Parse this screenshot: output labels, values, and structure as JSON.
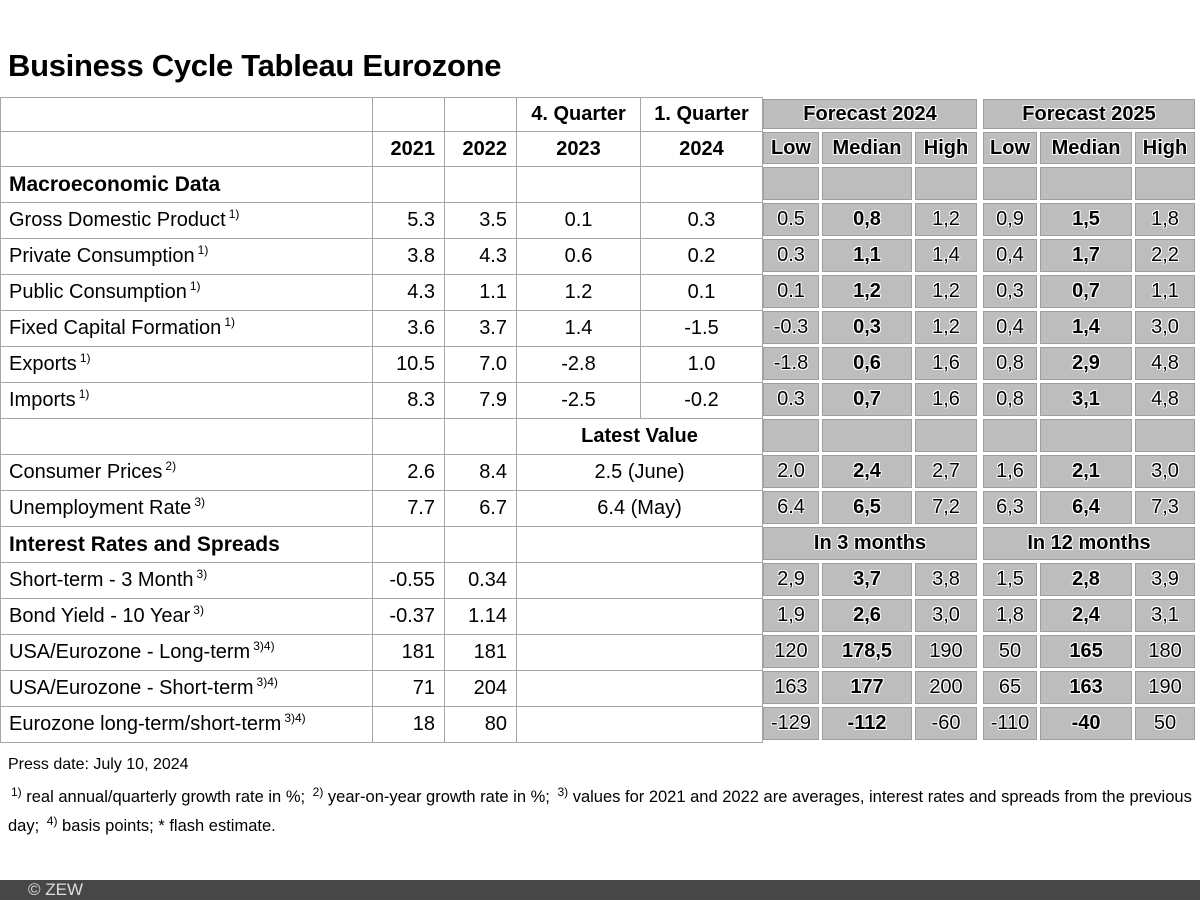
{
  "title": "Business Cycle Tableau Eurozone",
  "press_date": "Press date: July 10, 2024",
  "footer": {
    "copyright": "© ZEW"
  },
  "colors": {
    "cell_gray": "#bdbdbd",
    "grid_line": "#a6a6a6",
    "footer_bg": "#474747",
    "footer_text": "#dedede"
  },
  "footnotes": [
    {
      "sup": "1)",
      "text": " real annual/quarterly growth rate in %; "
    },
    {
      "sup": "2)",
      "text": " year-on-year growth rate in %; "
    },
    {
      "sup": "3)",
      "text": " values for 2021 and 2022 are averages, interest rates and spreads from the previous day; "
    },
    {
      "sup": "4)",
      "text": " basis points; * flash estimate."
    }
  ],
  "chart_data": {
    "type": "table",
    "title": "Business Cycle Tableau Eurozone",
    "header": {
      "year_cols": [
        "2021",
        "2022"
      ],
      "quarter_cols": [
        {
          "top": "4. Quarter",
          "year": "2023"
        },
        {
          "top": "1. Quarter",
          "year": "2024"
        }
      ],
      "forecast_groups": [
        {
          "label": "Forecast 2024",
          "sub": [
            "Low",
            "Median",
            "High"
          ]
        },
        {
          "label": "Forecast 2025",
          "sub": [
            "Low",
            "Median",
            "High"
          ]
        }
      ],
      "latest_value_label": "Latest Value"
    },
    "rows": [
      {
        "kind": "section",
        "label": "Macroeconomic Data"
      },
      {
        "kind": "data",
        "label": "Gross Domestic Product",
        "sup": "1)",
        "y": [
          "5.3",
          "3.5"
        ],
        "q": [
          "0.1",
          "0.3"
        ],
        "f1": [
          "0.5",
          "0,8",
          "1,2"
        ],
        "f2": [
          "0,9",
          "1,5",
          "1,8"
        ]
      },
      {
        "kind": "data",
        "label": "Private Consumption",
        "sup": "1)",
        "y": [
          "3.8",
          "4.3"
        ],
        "q": [
          "0.6",
          "0.2"
        ],
        "f1": [
          "0.3",
          "1,1",
          "1,4"
        ],
        "f2": [
          "0,4",
          "1,7",
          "2,2"
        ]
      },
      {
        "kind": "data",
        "label": "Public Consumption",
        "sup": "1)",
        "y": [
          "4.3",
          "1.1"
        ],
        "q": [
          "1.2",
          "0.1"
        ],
        "f1": [
          "0.1",
          "1,2",
          "1,2"
        ],
        "f2": [
          "0,3",
          "0,7",
          "1,1"
        ]
      },
      {
        "kind": "data",
        "label": "Fixed Capital Formation",
        "sup": "1)",
        "y": [
          "3.6",
          "3.7"
        ],
        "q": [
          "1.4",
          "-1.5"
        ],
        "f1": [
          "-0.3",
          "0,3",
          "1,2"
        ],
        "f2": [
          "0,4",
          "1,4",
          "3,0"
        ]
      },
      {
        "kind": "data",
        "label": "Exports",
        "sup": "1)",
        "y": [
          "10.5",
          "7.0"
        ],
        "q": [
          "-2.8",
          "1.0"
        ],
        "f1": [
          "-1.8",
          "0,6",
          "1,6"
        ],
        "f2": [
          "0,8",
          "2,9",
          "4,8"
        ]
      },
      {
        "kind": "data",
        "label": "Imports",
        "sup": "1)",
        "y": [
          "8.3",
          "7.9"
        ],
        "q": [
          "-2.5",
          "-0.2"
        ],
        "f1": [
          "0.3",
          "0,7",
          "1,6"
        ],
        "f2": [
          "0,8",
          "3,1",
          "4,8"
        ]
      },
      {
        "kind": "latest-header",
        "label": "Latest Value"
      },
      {
        "kind": "latest",
        "label": "Consumer Prices",
        "sup": "2)",
        "y": [
          "2.6",
          "8.4"
        ],
        "latest": "2.5 (June)",
        "f1": [
          "2.0",
          "2,4",
          "2,7"
        ],
        "f2": [
          "1,6",
          "2,1",
          "3,0"
        ]
      },
      {
        "kind": "latest",
        "label": "Unemployment Rate",
        "sup": "3)",
        "y": [
          "7.7",
          "6.7"
        ],
        "latest": "6.4 (May)",
        "f1": [
          "6.4",
          "6,5",
          "7,2"
        ],
        "f2": [
          "6,3",
          "6,4",
          "7,3"
        ]
      },
      {
        "kind": "section-spans",
        "label": "Interest Rates and Spreads",
        "spans": [
          "In 3 months",
          "In 12 months"
        ]
      },
      {
        "kind": "rate",
        "label": "Short-term - 3 Month",
        "sup": "3)",
        "y": [
          "-0.55",
          "0.34"
        ],
        "f1": [
          "2,9",
          "3,7",
          "3,8"
        ],
        "f2": [
          "1,5",
          "2,8",
          "3,9"
        ]
      },
      {
        "kind": "rate",
        "label": "Bond Yield - 10 Year",
        "sup": "3)",
        "y": [
          "-0.37",
          "1.14"
        ],
        "f1": [
          "1,9",
          "2,6",
          "3,0"
        ],
        "f2": [
          "1,8",
          "2,4",
          "3,1"
        ]
      },
      {
        "kind": "rate",
        "label": "USA/Eurozone - Long-term",
        "sup": "3)4)",
        "y": [
          "181",
          "181"
        ],
        "f1": [
          "120",
          "178,5",
          "190"
        ],
        "f2": [
          "50",
          "165",
          "180"
        ]
      },
      {
        "kind": "rate",
        "label": "USA/Eurozone - Short-term",
        "sup": "3)4)",
        "y": [
          "71",
          "204"
        ],
        "f1": [
          "163",
          "177",
          "200"
        ],
        "f2": [
          "65",
          "163",
          "190"
        ]
      },
      {
        "kind": "rate",
        "label": "Eurozone long-term/short-term",
        "sup": "3)4)",
        "y": [
          "18",
          "80"
        ],
        "f1": [
          "-129",
          "-112",
          "-60"
        ],
        "f2": [
          "-110",
          "-40",
          "50"
        ]
      }
    ]
  }
}
